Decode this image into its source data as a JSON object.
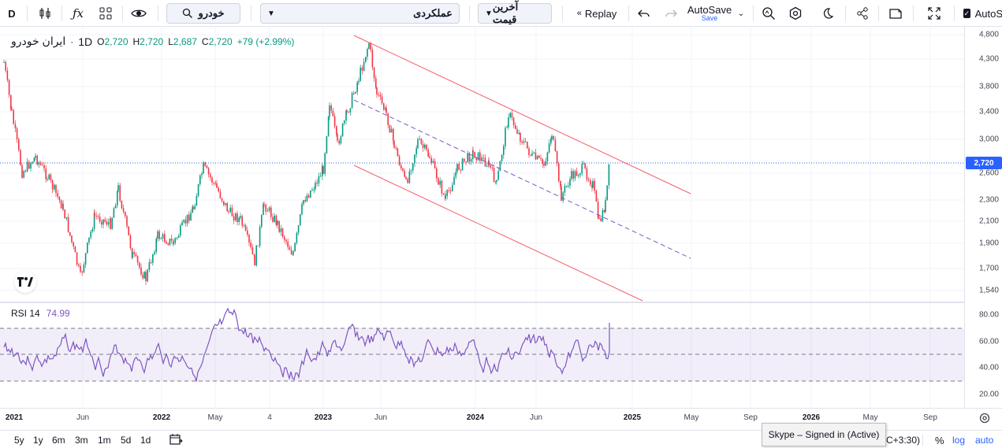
{
  "toolbar": {
    "interval": "D",
    "symbol_search": "خودرو",
    "layout_select": "عملکردی",
    "price_select": "آخرین قیمت",
    "replay_label": "Replay",
    "autosave_label": "AutoSave",
    "autosave_sub": "Save",
    "autosave_right": "AutoS"
  },
  "legend": {
    "symbol": "ایران خودرو",
    "sep": "·",
    "interval": "1D",
    "o_label": "O",
    "o": "2,720",
    "h_label": "H",
    "h": "2,720",
    "l_label": "L",
    "l": "2,687",
    "c_label": "C",
    "c": "2,720",
    "change": "+79 (+2.99%)"
  },
  "rsi_legend": {
    "name": "RSI 14",
    "value": "74.99"
  },
  "price_axis": [
    "4,800",
    "4,300",
    "3,800",
    "3,400",
    "3,000",
    "2,600",
    "2,300",
    "2,100",
    "1,900",
    "1,700",
    "1,540"
  ],
  "last_price": "2,720",
  "rsi_axis": [
    "80.00",
    "60.00",
    "40.00",
    "20.00"
  ],
  "time_axis": [
    {
      "label": "2021",
      "bold": true
    },
    {
      "label": "Jun",
      "bold": false
    },
    {
      "label": "2022",
      "bold": true
    },
    {
      "label": "May",
      "bold": false
    },
    {
      "label": "4",
      "bold": false
    },
    {
      "label": "2023",
      "bold": true
    },
    {
      "label": "Jun",
      "bold": false
    },
    {
      "label": "2024",
      "bold": true
    },
    {
      "label": "Jun",
      "bold": false
    },
    {
      "label": "2025",
      "bold": true
    },
    {
      "label": "May",
      "bold": false
    },
    {
      "label": "Sep",
      "bold": false
    },
    {
      "label": "2026",
      "bold": true
    },
    {
      "label": "May",
      "bold": false
    },
    {
      "label": "Sep",
      "bold": false
    }
  ],
  "bottom": {
    "ranges": [
      "5y",
      "1y",
      "6m",
      "3m",
      "1m",
      "5d",
      "1d"
    ],
    "timezone": "C+3:30)",
    "percent": "%",
    "log": "log",
    "auto": "auto"
  },
  "tooltip": "Skype – Signed in (Active)",
  "colors": {
    "up": "#089981",
    "down": "#f23645",
    "rsi": "#7e57c2",
    "channel": "#f23645",
    "midline": "#7e57c2",
    "accent": "#2962ff"
  },
  "chart_data": {
    "type": "candlestick",
    "price_range": [
      1540,
      4800
    ],
    "rsi_range": [
      15,
      88
    ],
    "rsi_levels": [
      70,
      50,
      30
    ]
  }
}
